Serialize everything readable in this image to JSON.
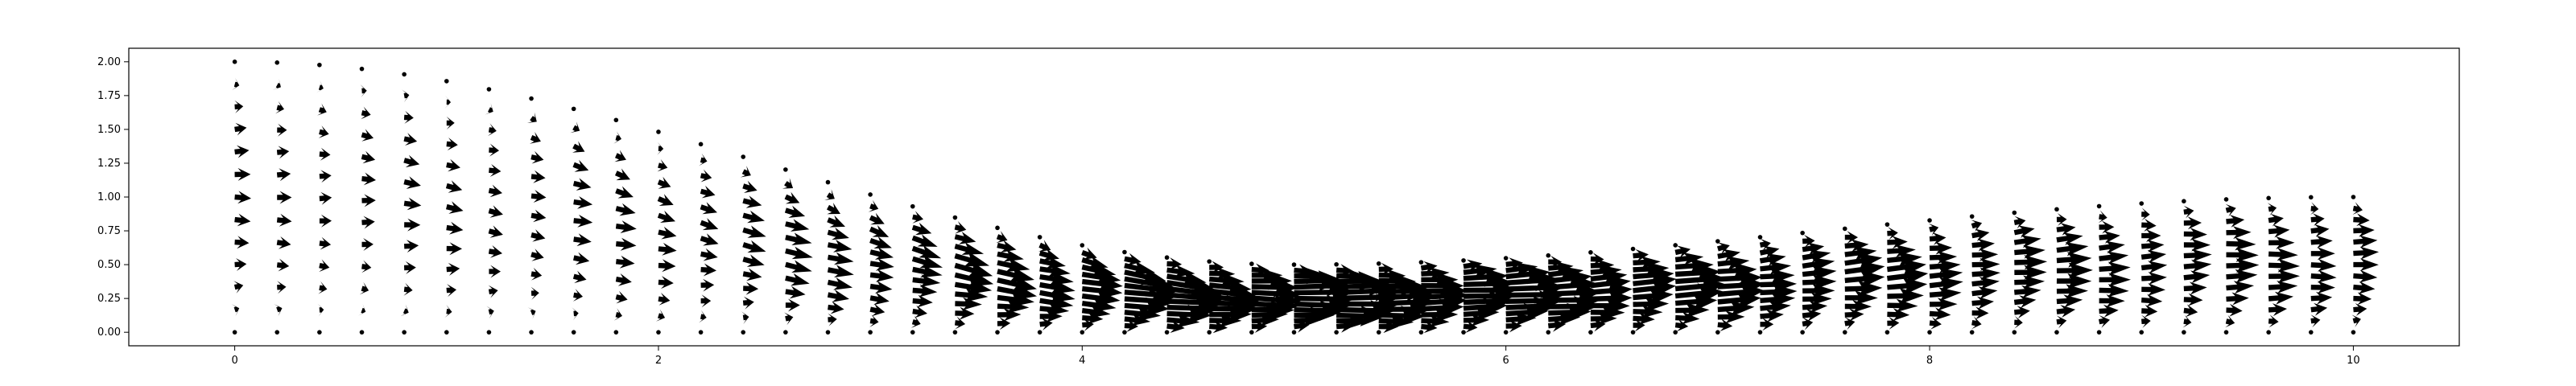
{
  "chart_data": {
    "type": "quiver",
    "title": "",
    "xlabel": "",
    "ylabel": "",
    "xlim": [
      -0.5,
      10.5
    ],
    "ylim": [
      -0.1,
      2.1
    ],
    "grid": false,
    "legend": "none",
    "arrow_color": "#000000",
    "x_ticks": [
      0,
      2,
      4,
      6,
      8,
      10
    ],
    "x_tick_labels": [
      "0",
      "2",
      "4",
      "6",
      "8",
      "10"
    ],
    "y_ticks": [
      0.0,
      0.25,
      0.5,
      0.75,
      1.0,
      1.25,
      1.5,
      1.75,
      2.0
    ],
    "y_tick_labels": [
      "0.00",
      "0.25",
      "0.50",
      "0.75",
      "1.00",
      "1.25",
      "1.50",
      "1.75",
      "2.00"
    ],
    "domain": {
      "x_range": [
        0,
        10
      ],
      "upper_wall": "sloping from y=2.0 at x=0 down to a minimum of about 0.5 near x=5, then rising to about 1.0 at x=10",
      "lower_wall": "y = 0"
    },
    "field_samples": [
      {
        "x": 0.0,
        "y": 1.8,
        "u": 0.25,
        "v": 0.0
      },
      {
        "x": 0.0,
        "y": 1.0,
        "u": 0.25,
        "v": 0.0
      },
      {
        "x": 0.0,
        "y": 0.2,
        "u": 0.25,
        "v": 0.0
      },
      {
        "x": 1.0,
        "y": 1.0,
        "u": 0.3,
        "v": -0.06
      },
      {
        "x": 2.0,
        "y": 0.8,
        "u": 0.35,
        "v": -0.08
      },
      {
        "x": 3.0,
        "y": 0.6,
        "u": 0.4,
        "v": -0.08
      },
      {
        "x": 5.0,
        "y": 0.25,
        "u": 0.45,
        "v": 0.0
      },
      {
        "x": 8.0,
        "y": 0.5,
        "u": 0.4,
        "v": 0.03
      },
      {
        "x": 10.0,
        "y": 0.75,
        "u": 0.3,
        "v": 0.0
      }
    ]
  }
}
